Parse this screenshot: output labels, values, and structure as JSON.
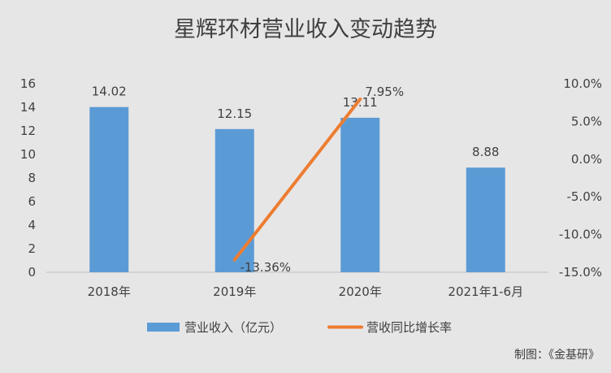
{
  "chart_data": {
    "type": "bar",
    "title": "星辉环材营业收入变动趋势",
    "categories": [
      "2018年",
      "2019年",
      "2020年",
      "2021年1-6月"
    ],
    "series": [
      {
        "name": "营业收入（亿元）",
        "type": "bar",
        "axis": "left",
        "values": [
          14.02,
          12.15,
          13.11,
          8.88
        ],
        "labels": [
          "14.02",
          "12.15",
          "13.11",
          "8.88"
        ],
        "color": "#5b9bd5"
      },
      {
        "name": "营收同比增长率",
        "type": "line",
        "axis": "right",
        "values": [
          null,
          -13.36,
          7.95,
          null
        ],
        "labels": [
          "",
          "-13.36%",
          "7.95%",
          ""
        ],
        "color": "#ed7d31"
      }
    ],
    "y_left": {
      "lim": [
        0,
        16
      ],
      "ticks": [
        0,
        2,
        4,
        6,
        8,
        10,
        12,
        14,
        16
      ],
      "tick_labels": [
        "0",
        "2",
        "4",
        "6",
        "8",
        "10",
        "12",
        "14",
        "16"
      ]
    },
    "y_right": {
      "lim": [
        -15,
        10
      ],
      "ticks": [
        -15,
        -10,
        -5,
        0,
        5,
        10
      ],
      "tick_labels": [
        "-15.0%",
        "-10.0%",
        "-5.0%",
        "0.0%",
        "5.0%",
        "10.0%"
      ]
    },
    "grid": false,
    "legend_position": "bottom",
    "background_color": "#e7e6e6",
    "credit": "制图：《金基研》"
  }
}
